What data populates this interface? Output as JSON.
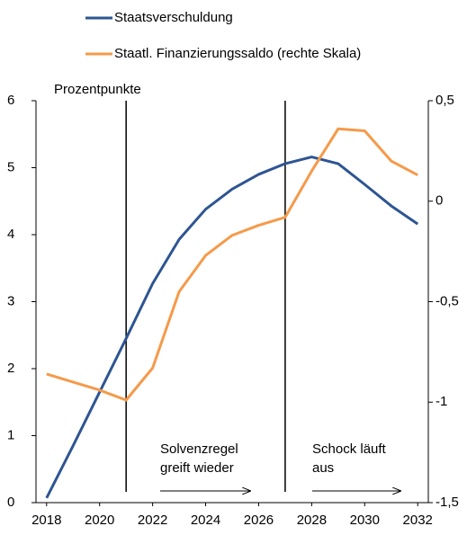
{
  "chart_data": {
    "type": "line",
    "x": [
      2018,
      2019,
      2020,
      2021,
      2022,
      2023,
      2024,
      2025,
      2026,
      2027,
      2028,
      2029,
      2030,
      2031,
      2032
    ],
    "series": [
      {
        "name": "Staatsverschuldung",
        "color": "#2e5592",
        "values": [
          0.07,
          0.85,
          1.65,
          2.45,
          3.27,
          3.93,
          4.38,
          4.68,
          4.9,
          5.06,
          5.16,
          5.06,
          4.75,
          4.43,
          4.16
        ]
      },
      {
        "name": "Staatl. Finanzierungssaldo (rechte Skala)",
        "color": "#f59a4a",
        "axis": "y2",
        "values": [
          -0.86,
          -0.9,
          -0.94,
          -0.99,
          -0.83,
          -0.45,
          -0.27,
          -0.17,
          -0.12,
          -0.08,
          0.15,
          0.36,
          0.35,
          0.2,
          0.13
        ]
      }
    ],
    "xlim": [
      2017.6,
      2032.4
    ],
    "xticks": [
      2018,
      2020,
      2022,
      2024,
      2026,
      2028,
      2030,
      2032
    ],
    "ylim": [
      0,
      6
    ],
    "yticks": [
      0,
      1,
      2,
      3,
      4,
      5,
      6
    ],
    "y2lim": [
      -1.5,
      0.5
    ],
    "y2ticks": [
      {
        "value": -1.5,
        "label": "-1,5"
      },
      -1,
      {
        "value": -0.5,
        "label": "-0,5"
      },
      0,
      {
        "value": 0.5,
        "label": "0,5"
      }
    ],
    "ylabel": "Prozentpunkte",
    "vlines": [
      2021,
      2027
    ],
    "annotations": [
      {
        "lines": [
          "Solvenzregel",
          "greift wieder"
        ]
      },
      {
        "lines": [
          "Schock läuft",
          "aus"
        ]
      }
    ]
  }
}
